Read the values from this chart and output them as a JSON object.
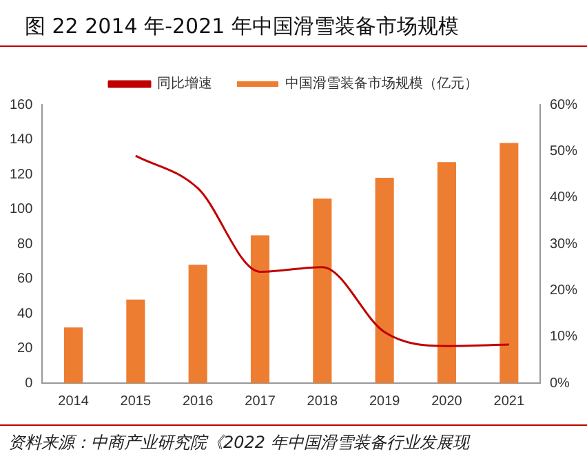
{
  "chart_data": {
    "type": "bar",
    "title": "图 22 2014 年-2021 年中国滑雪装备市场规模",
    "categories": [
      "2014",
      "2015",
      "2016",
      "2017",
      "2018",
      "2019",
      "2020",
      "2021"
    ],
    "series": [
      {
        "name": "中国滑雪装备市场规模（亿元）",
        "color": "#ed7d31",
        "values": [
          32,
          48,
          68,
          85,
          106,
          118,
          127,
          138
        ]
      },
      {
        "name": "同比增速",
        "type": "line",
        "axis": "y2",
        "color": "#c00000",
        "values": [
          null,
          49,
          42,
          24,
          25,
          11,
          8,
          8.3
        ]
      }
    ],
    "ylim": [
      0,
      160
    ],
    "yticks": [
      0,
      20,
      40,
      60,
      80,
      100,
      120,
      140,
      160
    ],
    "y2lim": [
      0,
      60
    ],
    "y2ticks": [
      {
        "value": 0,
        "label": "0%"
      },
      {
        "value": 10,
        "label": "10%"
      },
      {
        "value": 20,
        "label": "20%"
      },
      {
        "value": 30,
        "label": "30%"
      },
      {
        "value": 40,
        "label": "40%"
      },
      {
        "value": 50,
        "label": "50%"
      },
      {
        "value": 60,
        "label": "60%"
      }
    ],
    "grid": false,
    "legend": "top",
    "marker": "none",
    "annotations": [
      "资料来源：中商产业研究院《2022 年中国滑雪装备行业发展现"
    ]
  }
}
